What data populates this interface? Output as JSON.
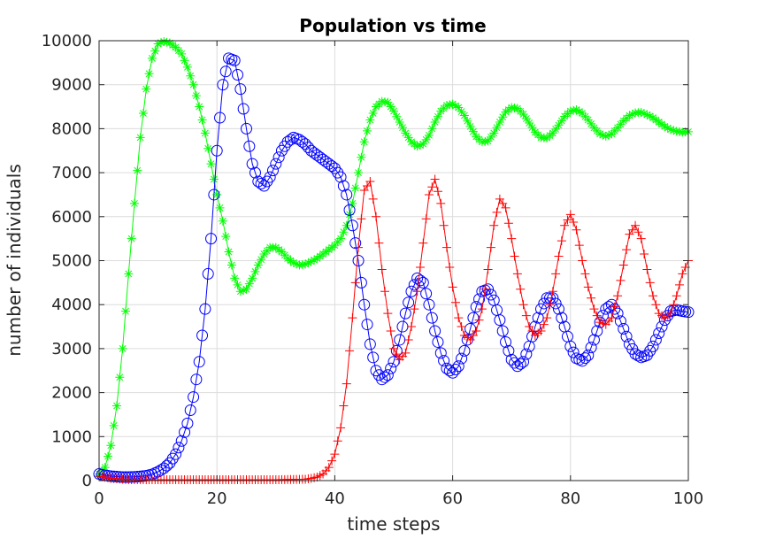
{
  "chart_data": {
    "type": "line",
    "title": "Population vs time",
    "xlabel": "time steps",
    "ylabel": "number of individuals",
    "xlim": [
      0,
      100
    ],
    "ylim": [
      0,
      10000
    ],
    "xticks": [
      0,
      20,
      40,
      60,
      80,
      100
    ],
    "yticks": [
      0,
      1000,
      2000,
      3000,
      4000,
      5000,
      6000,
      7000,
      8000,
      9000,
      10000
    ],
    "grid": true,
    "series": [
      {
        "marker": "asterisk",
        "color": "#00ff00",
        "points": [
          [
            0,
            150
          ],
          [
            1,
            300
          ],
          [
            2,
            800
          ],
          [
            3,
            1700
          ],
          [
            4,
            3000
          ],
          [
            5,
            4700
          ],
          [
            6,
            6300
          ],
          [
            7,
            7800
          ],
          [
            8,
            8900
          ],
          [
            9,
            9600
          ],
          [
            10,
            9930
          ],
          [
            11,
            9980
          ],
          [
            12,
            9950
          ],
          [
            13,
            9850
          ],
          [
            14,
            9700
          ],
          [
            15,
            9400
          ],
          [
            16,
            9000
          ],
          [
            17,
            8500
          ],
          [
            18,
            7900
          ],
          [
            19,
            7200
          ],
          [
            20,
            6500
          ],
          [
            21,
            5900
          ],
          [
            22,
            5200
          ],
          [
            23,
            4600
          ],
          [
            24,
            4300
          ],
          [
            25,
            4350
          ],
          [
            26,
            4600
          ],
          [
            27,
            4900
          ],
          [
            28,
            5150
          ],
          [
            29,
            5300
          ],
          [
            30,
            5300
          ],
          [
            31,
            5200
          ],
          [
            32,
            5050
          ],
          [
            33,
            4950
          ],
          [
            34,
            4900
          ],
          [
            35,
            4920
          ],
          [
            36,
            4980
          ],
          [
            37,
            5050
          ],
          [
            38,
            5150
          ],
          [
            39,
            5250
          ],
          [
            40,
            5350
          ],
          [
            41,
            5500
          ],
          [
            42,
            5800
          ],
          [
            43,
            6300
          ],
          [
            44,
            7000
          ],
          [
            45,
            7700
          ],
          [
            46,
            8200
          ],
          [
            47,
            8500
          ],
          [
            48,
            8620
          ],
          [
            49,
            8600
          ],
          [
            50,
            8400
          ],
          [
            51,
            8150
          ],
          [
            52,
            7900
          ],
          [
            53,
            7700
          ],
          [
            54,
            7600
          ],
          [
            55,
            7650
          ],
          [
            56,
            7850
          ],
          [
            57,
            8150
          ],
          [
            58,
            8400
          ],
          [
            59,
            8530
          ],
          [
            60,
            8560
          ],
          [
            61,
            8480
          ],
          [
            62,
            8300
          ],
          [
            63,
            8050
          ],
          [
            64,
            7820
          ],
          [
            65,
            7700
          ],
          [
            66,
            7720
          ],
          [
            67,
            7900
          ],
          [
            68,
            8150
          ],
          [
            69,
            8380
          ],
          [
            70,
            8480
          ],
          [
            71,
            8460
          ],
          [
            72,
            8330
          ],
          [
            73,
            8130
          ],
          [
            74,
            7920
          ],
          [
            75,
            7800
          ],
          [
            76,
            7790
          ],
          [
            77,
            7900
          ],
          [
            78,
            8080
          ],
          [
            79,
            8280
          ],
          [
            80,
            8400
          ],
          [
            81,
            8430
          ],
          [
            82,
            8350
          ],
          [
            83,
            8200
          ],
          [
            84,
            8020
          ],
          [
            85,
            7880
          ],
          [
            86,
            7830
          ],
          [
            87,
            7880
          ],
          [
            88,
            8020
          ],
          [
            89,
            8180
          ],
          [
            90,
            8300
          ],
          [
            91,
            8360
          ],
          [
            92,
            8370
          ],
          [
            93,
            8320
          ],
          [
            94,
            8250
          ],
          [
            95,
            8150
          ],
          [
            96,
            8050
          ],
          [
            97,
            7980
          ],
          [
            98,
            7940
          ],
          [
            99,
            7920
          ],
          [
            100,
            7930
          ]
        ]
      },
      {
        "marker": "circle",
        "color": "#0000ff",
        "points": [
          [
            0,
            150
          ],
          [
            1,
            120
          ],
          [
            2,
            100
          ],
          [
            3,
            90
          ],
          [
            4,
            80
          ],
          [
            5,
            80
          ],
          [
            6,
            85
          ],
          [
            7,
            95
          ],
          [
            8,
            110
          ],
          [
            9,
            140
          ],
          [
            10,
            200
          ],
          [
            11,
            280
          ],
          [
            12,
            400
          ],
          [
            13,
            600
          ],
          [
            14,
            900
          ],
          [
            15,
            1300
          ],
          [
            16,
            1900
          ],
          [
            17,
            2700
          ],
          [
            18,
            3900
          ],
          [
            19,
            5500
          ],
          [
            20,
            7500
          ],
          [
            21,
            9000
          ],
          [
            22,
            9600
          ],
          [
            23,
            9550
          ],
          [
            24,
            8900
          ],
          [
            25,
            8000
          ],
          [
            26,
            7200
          ],
          [
            27,
            6800
          ],
          [
            28,
            6700
          ],
          [
            29,
            6900
          ],
          [
            30,
            7200
          ],
          [
            31,
            7500
          ],
          [
            32,
            7700
          ],
          [
            33,
            7800
          ],
          [
            34,
            7750
          ],
          [
            35,
            7650
          ],
          [
            36,
            7500
          ],
          [
            37,
            7400
          ],
          [
            38,
            7300
          ],
          [
            39,
            7200
          ],
          [
            40,
            7100
          ],
          [
            41,
            6900
          ],
          [
            42,
            6500
          ],
          [
            43,
            5800
          ],
          [
            44,
            5000
          ],
          [
            45,
            4000
          ],
          [
            46,
            3100
          ],
          [
            47,
            2500
          ],
          [
            48,
            2300
          ],
          [
            49,
            2400
          ],
          [
            50,
            2700
          ],
          [
            51,
            3200
          ],
          [
            52,
            3800
          ],
          [
            53,
            4300
          ],
          [
            54,
            4600
          ],
          [
            55,
            4500
          ],
          [
            56,
            4000
          ],
          [
            57,
            3400
          ],
          [
            58,
            2900
          ],
          [
            59,
            2550
          ],
          [
            60,
            2450
          ],
          [
            61,
            2600
          ],
          [
            62,
            2950
          ],
          [
            63,
            3450
          ],
          [
            64,
            3950
          ],
          [
            65,
            4300
          ],
          [
            66,
            4350
          ],
          [
            67,
            4100
          ],
          [
            68,
            3650
          ],
          [
            69,
            3150
          ],
          [
            70,
            2750
          ],
          [
            71,
            2600
          ],
          [
            72,
            2700
          ],
          [
            73,
            3050
          ],
          [
            74,
            3500
          ],
          [
            75,
            3900
          ],
          [
            76,
            4150
          ],
          [
            77,
            4150
          ],
          [
            78,
            3900
          ],
          [
            79,
            3500
          ],
          [
            80,
            3050
          ],
          [
            81,
            2780
          ],
          [
            82,
            2720
          ],
          [
            83,
            2850
          ],
          [
            84,
            3200
          ],
          [
            85,
            3600
          ],
          [
            86,
            3900
          ],
          [
            87,
            4000
          ],
          [
            88,
            3800
          ],
          [
            89,
            3450
          ],
          [
            90,
            3100
          ],
          [
            91,
            2880
          ],
          [
            92,
            2800
          ],
          [
            93,
            2850
          ],
          [
            94,
            3050
          ],
          [
            95,
            3350
          ],
          [
            96,
            3650
          ],
          [
            97,
            3850
          ],
          [
            98,
            3880
          ],
          [
            99,
            3850
          ],
          [
            100,
            3830
          ]
        ]
      },
      {
        "marker": "plus",
        "color": "#ff0000",
        "points": [
          [
            0,
            100
          ],
          [
            2,
            50
          ],
          [
            5,
            20
          ],
          [
            10,
            20
          ],
          [
            15,
            20
          ],
          [
            20,
            20
          ],
          [
            25,
            20
          ],
          [
            30,
            20
          ],
          [
            35,
            30
          ],
          [
            36,
            50
          ],
          [
            37,
            80
          ],
          [
            38,
            150
          ],
          [
            39,
            300
          ],
          [
            40,
            600
          ],
          [
            41,
            1200
          ],
          [
            42,
            2200
          ],
          [
            43,
            3700
          ],
          [
            44,
            5300
          ],
          [
            45,
            6600
          ],
          [
            46,
            6800
          ],
          [
            47,
            6000
          ],
          [
            48,
            4800
          ],
          [
            49,
            3800
          ],
          [
            50,
            3000
          ],
          [
            51,
            2750
          ],
          [
            52,
            2900
          ],
          [
            53,
            3500
          ],
          [
            54,
            4300
          ],
          [
            55,
            5400
          ],
          [
            56,
            6500
          ],
          [
            57,
            6850
          ],
          [
            58,
            6300
          ],
          [
            59,
            5300
          ],
          [
            60,
            4400
          ],
          [
            61,
            3700
          ],
          [
            62,
            3300
          ],
          [
            63,
            3200
          ],
          [
            64,
            3400
          ],
          [
            65,
            3900
          ],
          [
            66,
            4800
          ],
          [
            67,
            5800
          ],
          [
            68,
            6400
          ],
          [
            69,
            6200
          ],
          [
            70,
            5500
          ],
          [
            71,
            4700
          ],
          [
            72,
            4000
          ],
          [
            73,
            3500
          ],
          [
            74,
            3300
          ],
          [
            75,
            3400
          ],
          [
            76,
            3700
          ],
          [
            77,
            4300
          ],
          [
            78,
            5100
          ],
          [
            79,
            5800
          ],
          [
            80,
            6050
          ],
          [
            81,
            5700
          ],
          [
            82,
            5000
          ],
          [
            83,
            4400
          ],
          [
            84,
            3900
          ],
          [
            85,
            3600
          ],
          [
            86,
            3550
          ],
          [
            87,
            3700
          ],
          [
            88,
            4200
          ],
          [
            89,
            4900
          ],
          [
            90,
            5600
          ],
          [
            91,
            5800
          ],
          [
            92,
            5500
          ],
          [
            93,
            4800
          ],
          [
            94,
            4200
          ],
          [
            95,
            3800
          ],
          [
            96,
            3700
          ],
          [
            97,
            3800
          ],
          [
            98,
            4200
          ],
          [
            99,
            4700
          ],
          [
            100,
            5000
          ]
        ]
      }
    ]
  }
}
